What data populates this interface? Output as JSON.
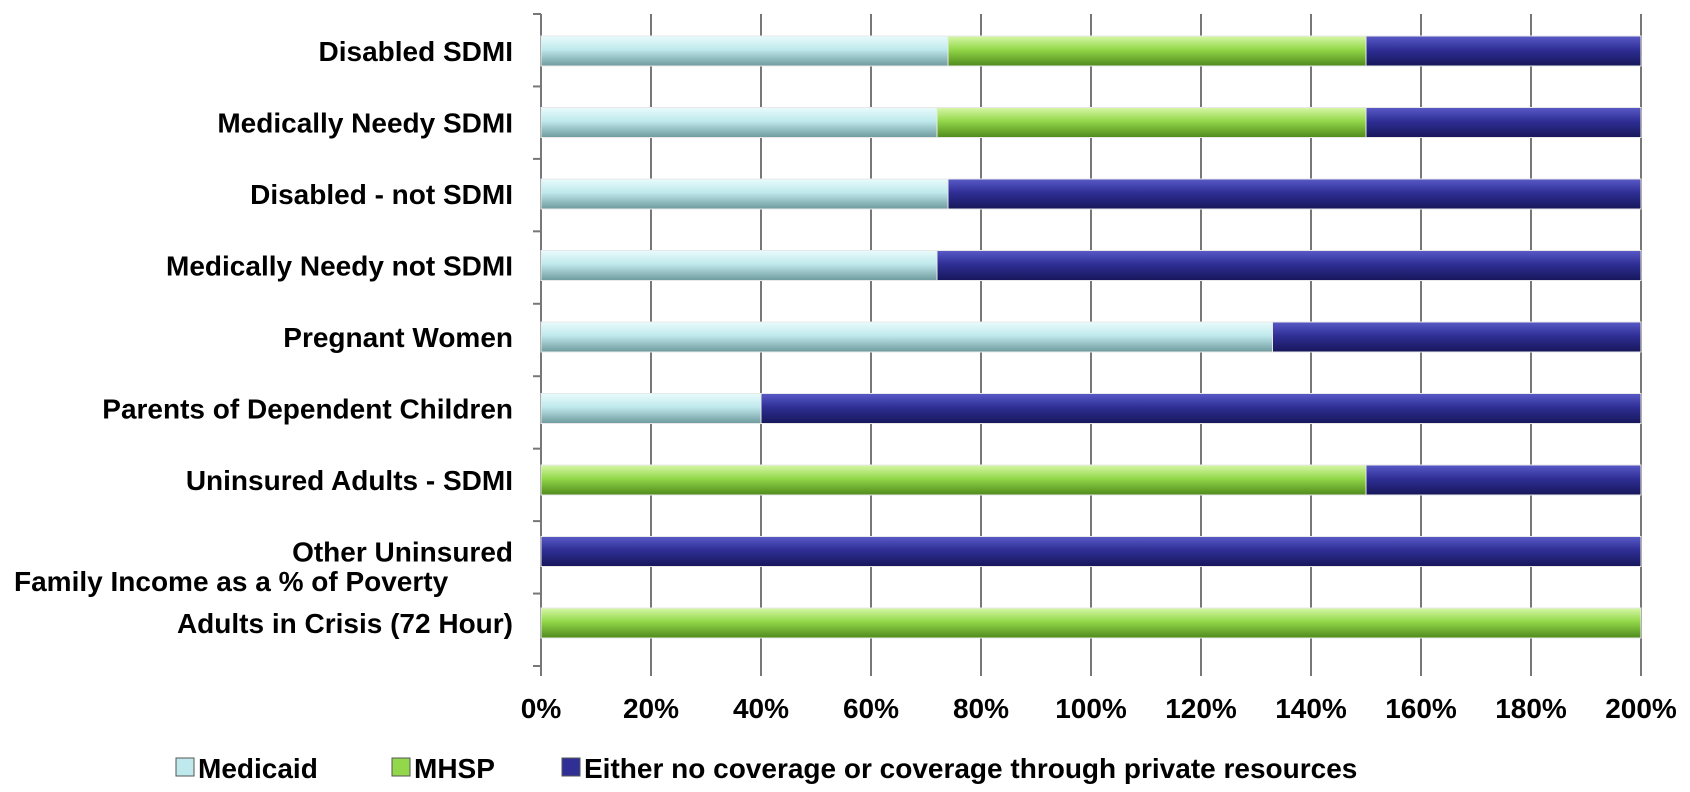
{
  "colors": {
    "medicaid": "#bfe9ec",
    "mhsp": "#93d84a",
    "other": "#2f2f96",
    "grid": "#777777"
  },
  "chart_data": {
    "type": "bar",
    "orientation": "horizontal",
    "stacked": true,
    "categories": [
      "Disabled SDMI",
      "Medically Needy SDMI",
      "Disabled - not SDMI",
      "Medically Needy not SDMI",
      "Pregnant Women",
      "Parents of Dependent Children",
      "Uninsured Adults - SDMI",
      "Other Uninsured",
      "Adults in Crisis (72 Hour)"
    ],
    "series": [
      {
        "name": "Medicaid",
        "color_key": "medicaid",
        "values": [
          74,
          72,
          74,
          72,
          133,
          40,
          0,
          0,
          0
        ]
      },
      {
        "name": "MHSP",
        "color_key": "mhsp",
        "values": [
          76,
          78,
          0,
          0,
          0,
          0,
          150,
          0,
          200
        ]
      },
      {
        "name": "Either no coverage or coverage through private resources",
        "color_key": "other",
        "values": [
          50,
          50,
          126,
          128,
          67,
          160,
          50,
          200,
          0
        ]
      }
    ],
    "xlim": [
      0,
      200
    ],
    "xticks": [
      "0%",
      "20%",
      "40%",
      "60%",
      "80%",
      "100%",
      "120%",
      "140%",
      "160%",
      "180%",
      "200%"
    ],
    "xlabel": "Family Income as a % of Poverty",
    "grid": true,
    "legend_position": "bottom"
  }
}
